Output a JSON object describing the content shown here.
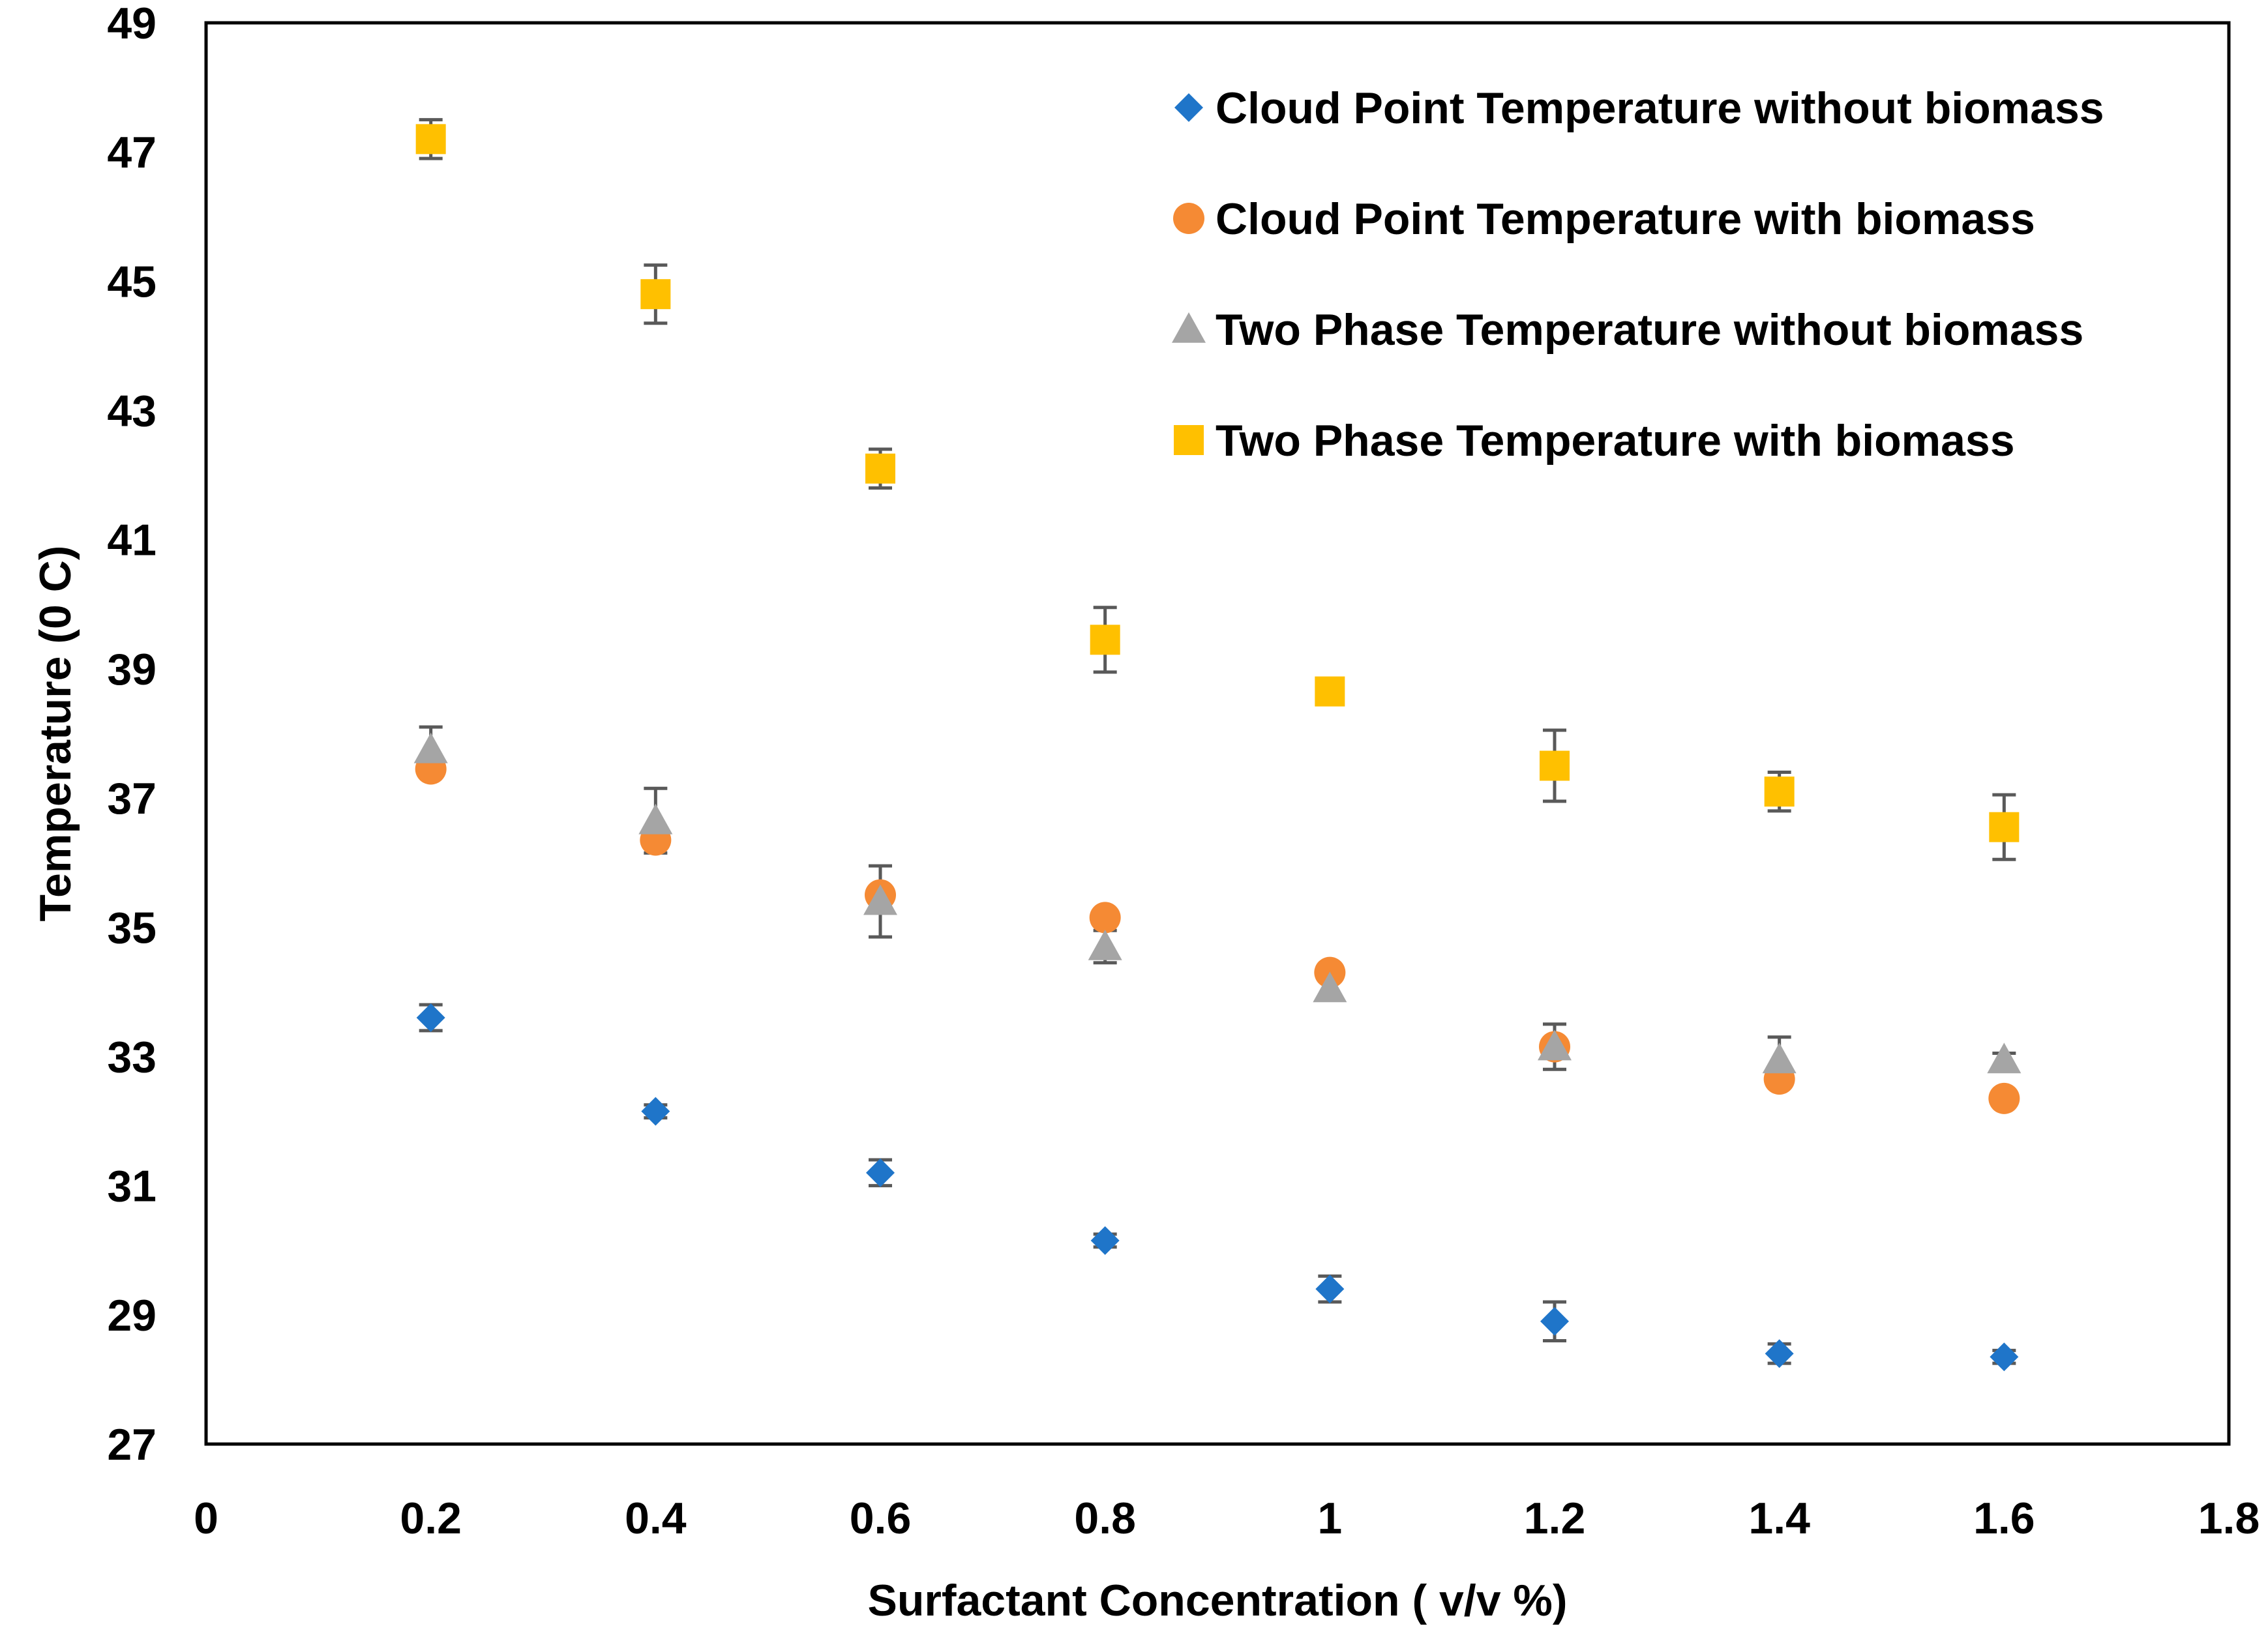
{
  "chart_data": {
    "type": "scatter",
    "title": "",
    "xlabel": "Surfactant Concentration ( v/v %)",
    "ylabel": "Temperature (0 C)",
    "xlim": [
      0,
      1.8
    ],
    "ylim": [
      27,
      49
    ],
    "x_ticks": [
      "0",
      "0.2",
      "0.4",
      "0.6",
      "0.8",
      "1",
      "1.2",
      "1.4",
      "1.6",
      "1.8"
    ],
    "y_ticks": [
      "27",
      "29",
      "31",
      "33",
      "35",
      "37",
      "39",
      "41",
      "43",
      "45",
      "47",
      "49"
    ],
    "grid": false,
    "legend_position": "top-right",
    "x": [
      0.2,
      0.4,
      0.6,
      0.8,
      1.0,
      1.2,
      1.4,
      1.6
    ],
    "series": [
      {
        "name": "Cloud Point Temperature without biomass",
        "marker": "diamond",
        "color": "#1F75C9",
        "values": [
          33.6,
          32.15,
          31.2,
          30.15,
          29.4,
          28.9,
          28.4,
          28.35
        ],
        "errors": [
          0.2,
          0.1,
          0.2,
          0.1,
          0.2,
          0.3,
          0.15,
          0.1
        ]
      },
      {
        "name": "Cloud Point Temperature with biomass",
        "marker": "circle",
        "color": "#F58A34",
        "values": [
          37.45,
          36.35,
          35.5,
          35.15,
          34.3,
          33.15,
          32.65,
          32.35
        ],
        "errors": [
          0,
          0,
          0,
          0,
          0,
          0,
          0,
          0
        ]
      },
      {
        "name": "Two Phase Temperature without biomass",
        "marker": "triangle",
        "color": "#A5A5A5",
        "values": [
          37.75,
          36.65,
          35.4,
          34.7,
          34.05,
          33.15,
          32.95,
          32.95
        ],
        "errors": [
          0.35,
          0.5,
          0.55,
          0.25,
          0,
          0.35,
          0.35,
          0.1
        ]
      },
      {
        "name": "Two Phase Temperature with biomass",
        "marker": "square",
        "color": "#FFC000",
        "values": [
          47.2,
          44.8,
          42.1,
          39.45,
          38.65,
          37.5,
          37.1,
          36.55
        ],
        "errors": [
          0.3,
          0.45,
          0.3,
          0.5,
          0,
          0.55,
          0.3,
          0.5
        ]
      }
    ]
  }
}
